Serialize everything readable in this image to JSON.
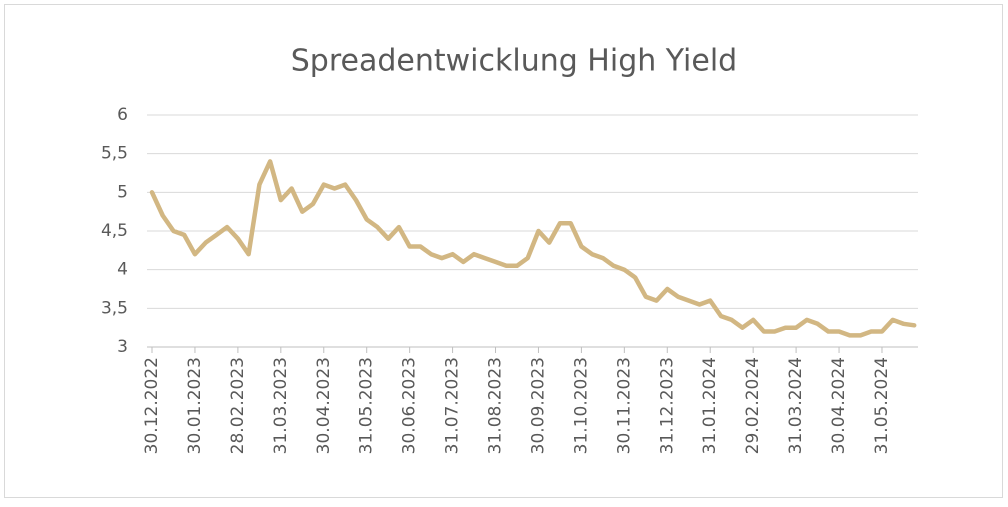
{
  "chart_data": {
    "type": "line",
    "title": "Spreadentwicklung High Yield",
    "categories": [
      "30.12.2022",
      null,
      null,
      null,
      "30.01.2023",
      null,
      null,
      null,
      "28.02.2023",
      null,
      null,
      null,
      "31.03.2023",
      null,
      null,
      null,
      "30.04.2023",
      null,
      null,
      null,
      "31.05.2023",
      null,
      null,
      null,
      "30.06.2023",
      null,
      null,
      null,
      "31.07.2023",
      null,
      null,
      null,
      "31.08.2023",
      null,
      null,
      null,
      "30.09.2023",
      null,
      null,
      null,
      "31.10.2023",
      null,
      null,
      null,
      "30.11.2023",
      null,
      null,
      null,
      "31.12.2023",
      null,
      null,
      null,
      "31.01.2024",
      null,
      null,
      null,
      "29.02.2024",
      null,
      null,
      null,
      "31.03.2024",
      null,
      null,
      null,
      "30.04.2024",
      null,
      null,
      null,
      "31.05.2024",
      null,
      null,
      null
    ],
    "values": [
      5.0,
      4.7,
      4.5,
      4.45,
      4.2,
      4.35,
      4.45,
      4.55,
      4.4,
      4.2,
      5.1,
      5.4,
      4.9,
      5.05,
      4.75,
      4.85,
      5.1,
      5.05,
      5.1,
      4.9,
      4.65,
      4.55,
      4.4,
      4.55,
      4.3,
      4.3,
      4.2,
      4.15,
      4.2,
      4.1,
      4.2,
      4.15,
      4.1,
      4.05,
      4.05,
      4.15,
      4.5,
      4.35,
      4.6,
      4.6,
      4.3,
      4.2,
      4.15,
      4.05,
      4.0,
      3.9,
      3.65,
      3.6,
      3.75,
      3.65,
      3.6,
      3.55,
      3.6,
      3.4,
      3.35,
      3.25,
      3.35,
      3.2,
      3.2,
      3.25,
      3.25,
      3.35,
      3.3,
      3.2,
      3.2,
      3.15,
      3.15,
      3.2,
      3.2,
      3.35,
      3.3,
      3.28
    ],
    "color": "#d2b783",
    "ylim": [
      3,
      6
    ],
    "yticks": [
      3,
      {
        "value": 3.5,
        "label": "3,5"
      },
      4,
      {
        "value": 4.5,
        "label": "4,5"
      },
      5,
      {
        "value": 5.5,
        "label": "5,5"
      },
      6
    ],
    "grid": true
  }
}
